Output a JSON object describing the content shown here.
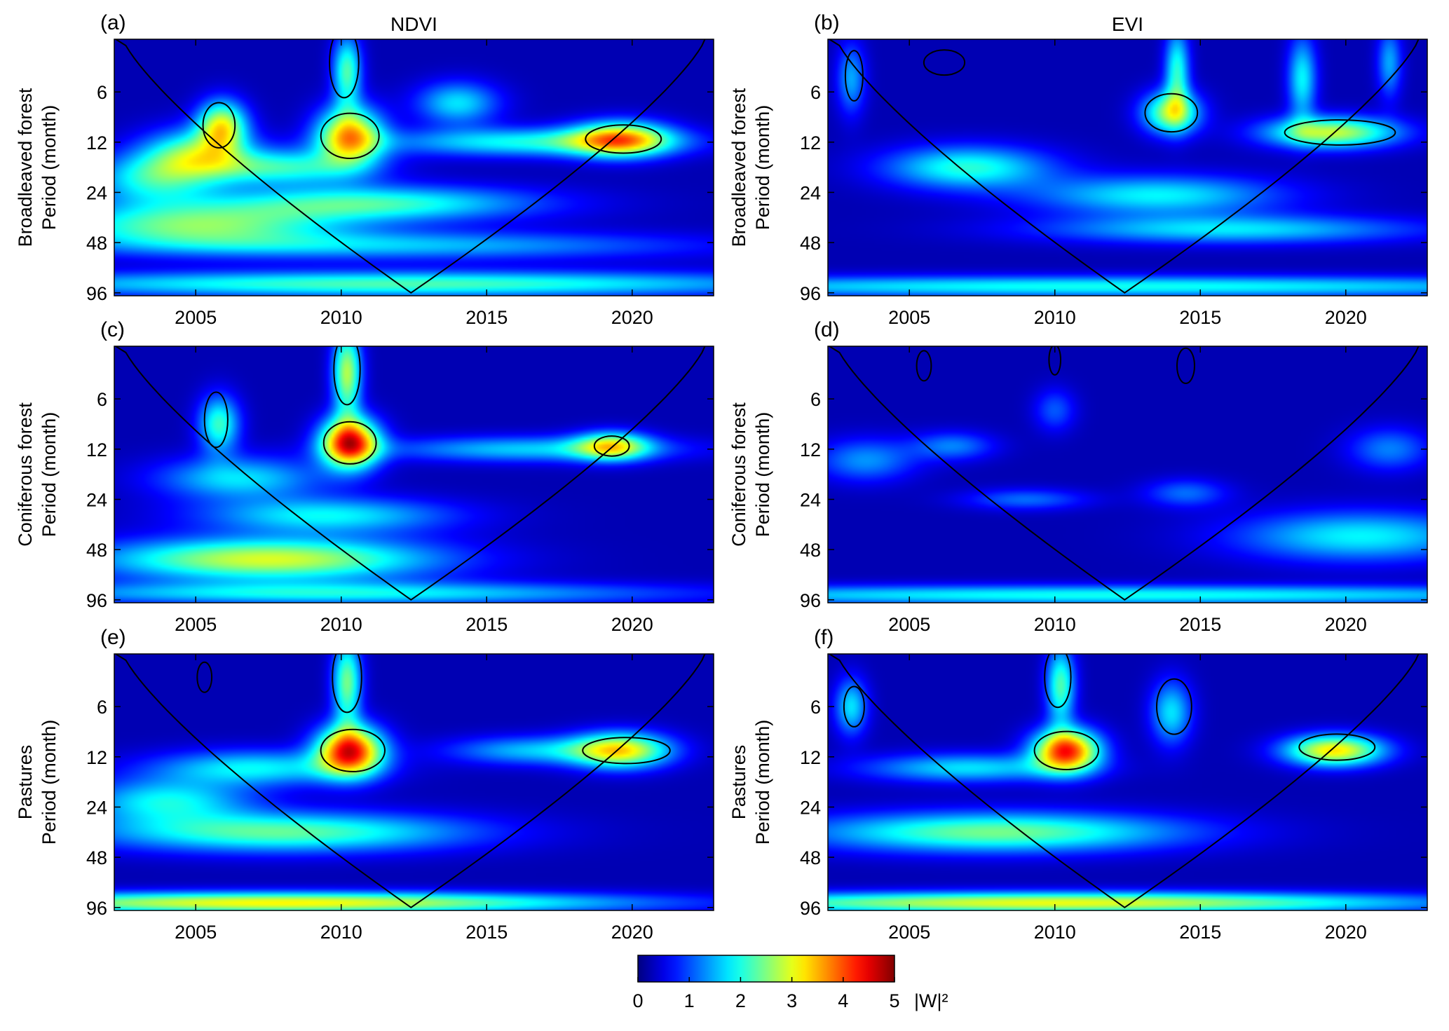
{
  "chart_data": {
    "type": "heatmap",
    "description_kind": "wavelet power spectrum panels",
    "columns": [
      {
        "title": "NDVI"
      },
      {
        "title": "EVI"
      }
    ],
    "x_ticks": [
      "2005",
      "2010",
      "2015",
      "2020"
    ],
    "x_tick_values": [
      2005,
      2010,
      2015,
      2020
    ],
    "xlim": [
      2002.2,
      2022.8
    ],
    "y_ticks": [
      "6",
      "12",
      "24",
      "48",
      "96"
    ],
    "y_tick_values": [
      6,
      12,
      24,
      48,
      96
    ],
    "ylim": [
      2.9,
      100
    ],
    "y_scale": "log2",
    "y_reversed": true,
    "grid": false,
    "coi_apex": [
      2012.4,
      96
    ],
    "panels": [
      {
        "label": "(a)",
        "col": 0,
        "row": 0,
        "ylabel": [
          "Broadleaved forest",
          "Period (month)"
        ],
        "blobs": [
          {
            "x": 2010.3,
            "p": 11,
            "sx": 0.8,
            "sp": 0.4,
            "v": 3.2
          },
          {
            "x": 2010.2,
            "p": 4.5,
            "sx": 0.35,
            "sp": 0.5,
            "v": 2.0
          },
          {
            "x": 2005.9,
            "p": 9.5,
            "sx": 0.6,
            "sp": 0.35,
            "v": 2.6
          },
          {
            "x": 2005.0,
            "p": 14,
            "sx": 1.3,
            "sp": 0.35,
            "v": 2.0
          },
          {
            "x": 2019.6,
            "p": 11.5,
            "sx": 1.2,
            "sp": 0.25,
            "v": 2.8
          },
          {
            "x": 2016.5,
            "p": 12,
            "sx": 3.5,
            "sp": 0.2,
            "v": 1.7
          },
          {
            "x": 2014.0,
            "p": 7,
            "sx": 1.0,
            "sp": 0.3,
            "v": 1.5
          },
          {
            "x": 2008.0,
            "p": 17,
            "sx": 2.0,
            "sp": 0.25,
            "v": 1.8
          },
          {
            "x": 2011.0,
            "p": 28,
            "sx": 4.0,
            "sp": 0.25,
            "v": 1.9
          },
          {
            "x": 2005.0,
            "p": 38,
            "sx": 3.5,
            "sp": 0.3,
            "v": 2.1
          },
          {
            "x": 2003.5,
            "p": 20,
            "sx": 1.5,
            "sp": 0.35,
            "v": 1.6
          },
          {
            "x": 2012.0,
            "p": 50,
            "sx": 7.0,
            "sp": 0.2,
            "v": 1.3
          },
          {
            "x": 2012.0,
            "p": 85,
            "sx": 10.0,
            "sp": 0.18,
            "v": 2.0
          }
        ],
        "contours": [
          {
            "x": 2010.3,
            "p": 11,
            "rx": 1.0,
            "rp": 0.45
          },
          {
            "x": 2005.8,
            "p": 9.5,
            "rx": 0.55,
            "rp": 0.45
          },
          {
            "x": 2019.7,
            "p": 11.5,
            "rx": 1.3,
            "rp": 0.28
          },
          {
            "x": 2010.1,
            "p": 4.0,
            "rx": 0.5,
            "rp": 0.7
          }
        ]
      },
      {
        "label": "(b)",
        "col": 1,
        "row": 0,
        "ylabel": [
          "Broadleaved forest",
          "Period (month)"
        ],
        "blobs": [
          {
            "x": 2014.0,
            "p": 8,
            "sx": 0.7,
            "sp": 0.3,
            "v": 2.4
          },
          {
            "x": 2014.2,
            "p": 4.5,
            "sx": 0.3,
            "sp": 0.6,
            "v": 1.8
          },
          {
            "x": 2019.5,
            "p": 10.5,
            "sx": 1.6,
            "sp": 0.22,
            "v": 2.6
          },
          {
            "x": 2018.5,
            "p": 5,
            "sx": 0.35,
            "sp": 0.6,
            "v": 1.6
          },
          {
            "x": 2007.0,
            "p": 17,
            "sx": 2.0,
            "sp": 0.3,
            "v": 1.8
          },
          {
            "x": 2013.5,
            "p": 25,
            "sx": 3.0,
            "sp": 0.28,
            "v": 1.6
          },
          {
            "x": 2016.0,
            "p": 40,
            "sx": 4.5,
            "sp": 0.2,
            "v": 1.5
          },
          {
            "x": 2003.0,
            "p": 5,
            "sx": 0.35,
            "sp": 0.5,
            "v": 1.2
          },
          {
            "x": 2021.5,
            "p": 4,
            "sx": 0.3,
            "sp": 0.5,
            "v": 1.2
          },
          {
            "x": 2012.0,
            "p": 88,
            "sx": 14.0,
            "sp": 0.15,
            "v": 1.7
          }
        ],
        "contours": [
          {
            "x": 2014.0,
            "p": 8,
            "rx": 0.9,
            "rp": 0.38
          },
          {
            "x": 2019.8,
            "p": 10.5,
            "rx": 1.9,
            "rp": 0.25
          },
          {
            "x": 2006.2,
            "p": 4.0,
            "rx": 0.7,
            "rp": 0.25
          },
          {
            "x": 2003.1,
            "p": 4.8,
            "rx": 0.3,
            "rp": 0.5
          }
        ]
      },
      {
        "label": "(c)",
        "col": 0,
        "row": 1,
        "ylabel": [
          "Coniferous forest",
          "Period (month)"
        ],
        "blobs": [
          {
            "x": 2010.3,
            "p": 11,
            "sx": 0.7,
            "sp": 0.35,
            "v": 4.2
          },
          {
            "x": 2010.2,
            "p": 4.2,
            "sx": 0.35,
            "sp": 0.6,
            "v": 2.5
          },
          {
            "x": 2005.8,
            "p": 8.5,
            "sx": 0.5,
            "sp": 0.4,
            "v": 1.9
          },
          {
            "x": 2019.3,
            "p": 11.5,
            "sx": 0.9,
            "sp": 0.2,
            "v": 2.3
          },
          {
            "x": 2016.5,
            "p": 12,
            "sx": 3.5,
            "sp": 0.18,
            "v": 1.4
          },
          {
            "x": 2006.5,
            "p": 18,
            "sx": 2.0,
            "sp": 0.3,
            "v": 1.5
          },
          {
            "x": 2009.5,
            "p": 30,
            "sx": 3.0,
            "sp": 0.25,
            "v": 1.6
          },
          {
            "x": 2007.5,
            "p": 55,
            "sx": 4.0,
            "sp": 0.3,
            "v": 2.7
          },
          {
            "x": 2010.0,
            "p": 88,
            "sx": 8.0,
            "sp": 0.16,
            "v": 1.6
          }
        ],
        "contours": [
          {
            "x": 2010.3,
            "p": 11,
            "rx": 0.9,
            "rp": 0.42
          },
          {
            "x": 2005.7,
            "p": 8.0,
            "rx": 0.4,
            "rp": 0.55
          },
          {
            "x": 2019.3,
            "p": 11.5,
            "rx": 0.6,
            "rp": 0.2
          },
          {
            "x": 2010.2,
            "p": 4.0,
            "rx": 0.45,
            "rp": 0.7
          }
        ]
      },
      {
        "label": "(d)",
        "col": 1,
        "row": 1,
        "ylabel": [
          "Coniferous forest",
          "Period (month)"
        ],
        "blobs": [
          {
            "x": 2003.5,
            "p": 14,
            "sx": 1.2,
            "sp": 0.3,
            "v": 1.1
          },
          {
            "x": 2006.5,
            "p": 11.5,
            "sx": 1.0,
            "sp": 0.2,
            "v": 1.0
          },
          {
            "x": 2010.0,
            "p": 7,
            "sx": 0.5,
            "sp": 0.3,
            "v": 0.8
          },
          {
            "x": 2009.0,
            "p": 24,
            "sx": 1.5,
            "sp": 0.15,
            "v": 0.9
          },
          {
            "x": 2014.5,
            "p": 22,
            "sx": 1.0,
            "sp": 0.2,
            "v": 0.9
          },
          {
            "x": 2021.5,
            "p": 12,
            "sx": 1.0,
            "sp": 0.3,
            "v": 1.0
          },
          {
            "x": 2020.5,
            "p": 40,
            "sx": 3.0,
            "sp": 0.35,
            "v": 1.6
          },
          {
            "x": 2012.0,
            "p": 90,
            "sx": 14.0,
            "sp": 0.14,
            "v": 1.7
          }
        ],
        "contours": [
          {
            "x": 2005.5,
            "p": 3.8,
            "rx": 0.25,
            "rp": 0.3
          },
          {
            "x": 2014.5,
            "p": 3.8,
            "rx": 0.3,
            "rp": 0.35
          },
          {
            "x": 2010.0,
            "p": 3.5,
            "rx": 0.2,
            "rp": 0.3
          }
        ]
      },
      {
        "label": "(e)",
        "col": 0,
        "row": 2,
        "ylabel": [
          "Pastures",
          "Period (month)"
        ],
        "blobs": [
          {
            "x": 2010.3,
            "p": 11,
            "sx": 0.8,
            "sp": 0.35,
            "v": 4.0
          },
          {
            "x": 2010.2,
            "p": 4.3,
            "sx": 0.35,
            "sp": 0.6,
            "v": 2.2
          },
          {
            "x": 2019.6,
            "p": 11,
            "sx": 1.2,
            "sp": 0.25,
            "v": 2.8
          },
          {
            "x": 2016.5,
            "p": 11,
            "sx": 2.0,
            "sp": 0.2,
            "v": 1.3
          },
          {
            "x": 2007.0,
            "p": 14,
            "sx": 2.5,
            "sp": 0.25,
            "v": 1.6
          },
          {
            "x": 2008.0,
            "p": 34,
            "sx": 4.5,
            "sp": 0.28,
            "v": 2.1
          },
          {
            "x": 2004.0,
            "p": 22,
            "sx": 2.0,
            "sp": 0.3,
            "v": 1.6
          },
          {
            "x": 2008.0,
            "p": 90,
            "sx": 8.0,
            "sp": 0.15,
            "v": 2.9
          }
        ],
        "contours": [
          {
            "x": 2010.4,
            "p": 11,
            "rx": 1.1,
            "rp": 0.42
          },
          {
            "x": 2019.8,
            "p": 11,
            "rx": 1.5,
            "rp": 0.26
          },
          {
            "x": 2010.2,
            "p": 4.0,
            "rx": 0.5,
            "rp": 0.7
          },
          {
            "x": 2005.3,
            "p": 4.0,
            "rx": 0.25,
            "rp": 0.3
          }
        ]
      },
      {
        "label": "(f)",
        "col": 1,
        "row": 2,
        "ylabel": [
          "Pastures",
          "Period (month)"
        ],
        "blobs": [
          {
            "x": 2010.4,
            "p": 11,
            "sx": 0.8,
            "sp": 0.3,
            "v": 3.9
          },
          {
            "x": 2010.2,
            "p": 4.5,
            "sx": 0.35,
            "sp": 0.55,
            "v": 2.0
          },
          {
            "x": 2019.6,
            "p": 11,
            "sx": 1.2,
            "sp": 0.22,
            "v": 3.0
          },
          {
            "x": 2014.0,
            "p": 6.5,
            "sx": 0.5,
            "sp": 0.45,
            "v": 1.5
          },
          {
            "x": 2003.0,
            "p": 6,
            "sx": 0.4,
            "sp": 0.4,
            "v": 1.5
          },
          {
            "x": 2007.0,
            "p": 14,
            "sx": 2.5,
            "sp": 0.2,
            "v": 1.5
          },
          {
            "x": 2008.0,
            "p": 34,
            "sx": 4.5,
            "sp": 0.28,
            "v": 2.2
          },
          {
            "x": 2010.0,
            "p": 90,
            "sx": 9.0,
            "sp": 0.15,
            "v": 2.8
          }
        ],
        "contours": [
          {
            "x": 2010.4,
            "p": 11,
            "rx": 1.1,
            "rp": 0.38
          },
          {
            "x": 2019.7,
            "p": 10.5,
            "rx": 1.3,
            "rp": 0.26
          },
          {
            "x": 2014.1,
            "p": 6.0,
            "rx": 0.6,
            "rp": 0.55
          },
          {
            "x": 2003.1,
            "p": 6.0,
            "rx": 0.35,
            "rp": 0.4
          },
          {
            "x": 2010.1,
            "p": 4.0,
            "rx": 0.45,
            "rp": 0.6
          }
        ]
      }
    ],
    "colorbar": {
      "ticks": [
        "0",
        "1",
        "2",
        "3",
        "4",
        "5"
      ],
      "range": [
        0,
        5
      ],
      "label": "|W|²",
      "colormap": "jet"
    }
  }
}
